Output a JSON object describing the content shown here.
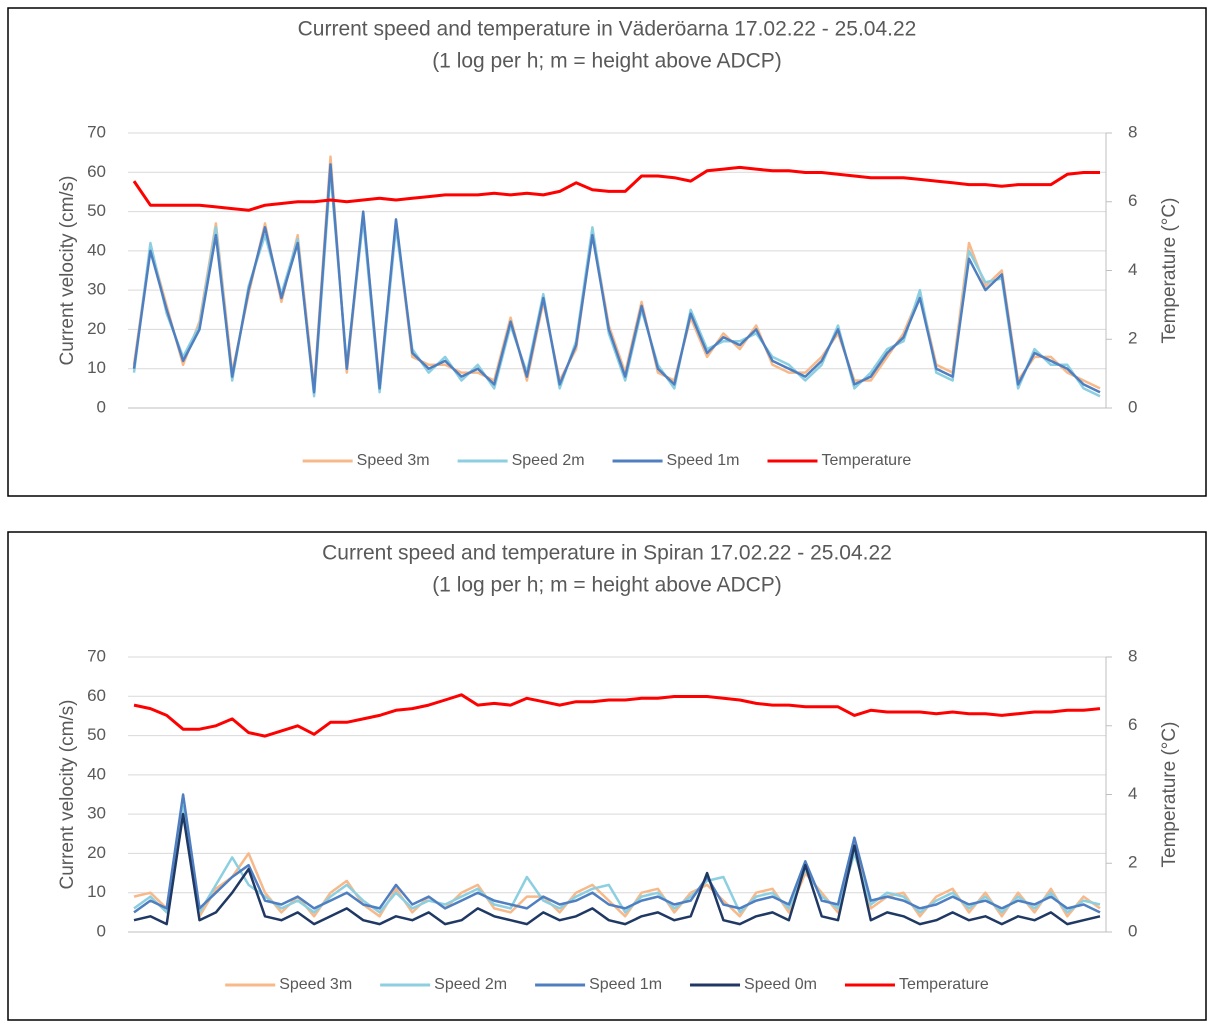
{
  "chart_data": [
    {
      "type": "line",
      "title": "Current speed and temperature in Väderöarna 17.02.22 - 25.04.22",
      "subtitle": "(1 log per h; m = height above ADCP)",
      "ylabel": "Current velocity (cm/s)",
      "y2label": "Temperature (°C)",
      "ylim": [
        0,
        70
      ],
      "yticks": [
        0,
        10,
        20,
        30,
        40,
        50,
        60,
        70
      ],
      "y2lim": [
        0,
        8
      ],
      "y2ticks": [
        0,
        2,
        4,
        6,
        8
      ],
      "grid": true,
      "legend": "bottom",
      "series": [
        {
          "name": "Speed 3m",
          "color": "#f8b98a",
          "values": [
            11,
            41,
            26,
            11,
            22,
            47,
            9,
            29,
            47,
            27,
            44,
            5,
            64,
            9,
            49,
            6,
            47,
            13,
            11,
            11,
            9,
            9,
            7,
            23,
            7,
            27,
            7,
            15,
            45,
            21,
            9,
            27,
            9,
            7,
            23,
            13,
            19,
            15,
            21,
            11,
            9,
            9,
            13,
            19,
            7,
            7,
            13,
            19,
            29,
            11,
            9,
            42,
            31,
            35,
            7,
            13,
            13,
            9,
            7,
            5
          ]
        },
        {
          "name": "Speed 2m",
          "color": "#8ccfe0",
          "values": [
            9,
            42,
            24,
            13,
            21,
            46,
            7,
            31,
            44,
            29,
            43,
            3,
            60,
            11,
            48,
            4,
            46,
            15,
            9,
            13,
            7,
            11,
            5,
            21,
            9,
            29,
            5,
            17,
            46,
            19,
            7,
            25,
            11,
            5,
            25,
            15,
            17,
            17,
            19,
            13,
            11,
            7,
            11,
            21,
            5,
            9,
            15,
            17,
            30,
            9,
            7,
            40,
            32,
            33,
            5,
            15,
            11,
            11,
            5,
            3
          ]
        },
        {
          "name": "Speed 1m",
          "color": "#4f7fc0",
          "values": [
            10,
            40,
            25,
            12,
            20,
            44,
            8,
            30,
            46,
            28,
            42,
            4,
            62,
            10,
            50,
            5,
            48,
            14,
            10,
            12,
            8,
            10,
            6,
            22,
            8,
            28,
            6,
            16,
            44,
            20,
            8,
            26,
            10,
            6,
            24,
            14,
            18,
            16,
            20,
            12,
            10,
            8,
            12,
            20,
            6,
            8,
            14,
            18,
            28,
            10,
            8,
            38,
            30,
            34,
            6,
            14,
            12,
            10,
            6,
            4
          ]
        },
        {
          "name": "Temperature",
          "color": "#ff0000",
          "axis": "y2",
          "values": [
            6.6,
            5.9,
            5.9,
            5.9,
            5.9,
            5.85,
            5.8,
            5.75,
            5.9,
            5.95,
            6.0,
            6.0,
            6.05,
            6.0,
            6.05,
            6.1,
            6.05,
            6.1,
            6.15,
            6.2,
            6.2,
            6.2,
            6.25,
            6.2,
            6.25,
            6.2,
            6.3,
            6.55,
            6.35,
            6.3,
            6.3,
            6.75,
            6.75,
            6.7,
            6.6,
            6.9,
            6.95,
            7.0,
            6.95,
            6.9,
            6.9,
            6.85,
            6.85,
            6.8,
            6.75,
            6.7,
            6.7,
            6.7,
            6.65,
            6.6,
            6.55,
            6.5,
            6.5,
            6.45,
            6.5,
            6.5,
            6.5,
            6.8,
            6.85,
            6.85
          ]
        }
      ]
    },
    {
      "type": "line",
      "title": "Current speed and temperature in Spiran 17.02.22 - 25.04.22",
      "subtitle": "(1 log per h; m = height above ADCP)",
      "ylabel": "Current velocity (cm/s)",
      "y2label": "Temperature (°C)",
      "ylim": [
        0,
        70
      ],
      "yticks": [
        0,
        10,
        20,
        30,
        40,
        50,
        60,
        70
      ],
      "y2lim": [
        0,
        8
      ],
      "y2ticks": [
        0,
        2,
        4,
        6,
        8
      ],
      "grid": true,
      "legend": "bottom",
      "series": [
        {
          "name": "Speed 3m",
          "color": "#f8b98a",
          "values": [
            9,
            10,
            6,
            31,
            4,
            11,
            14,
            20,
            10,
            5,
            9,
            4,
            10,
            13,
            7,
            4,
            11,
            5,
            9,
            6,
            10,
            12,
            6,
            5,
            9,
            9,
            5,
            10,
            12,
            8,
            4,
            10,
            11,
            5,
            10,
            12,
            8,
            4,
            10,
            11,
            5,
            15,
            10,
            5,
            23,
            6,
            9,
            10,
            4,
            9,
            11,
            5,
            10,
            4,
            10,
            5,
            11,
            4,
            9,
            6
          ]
        },
        {
          "name": "Speed 2m",
          "color": "#8ccfe0",
          "values": [
            6,
            9,
            5,
            32,
            5,
            12,
            19,
            12,
            9,
            6,
            8,
            5,
            9,
            12,
            8,
            5,
            10,
            6,
            8,
            7,
            9,
            11,
            7,
            6,
            14,
            8,
            6,
            9,
            11,
            12,
            5,
            9,
            10,
            6,
            9,
            13,
            14,
            5,
            9,
            10,
            6,
            16,
            9,
            6,
            20,
            7,
            10,
            9,
            5,
            8,
            10,
            6,
            9,
            5,
            9,
            6,
            10,
            5,
            8,
            7
          ]
        },
        {
          "name": "Speed 1m",
          "color": "#4f7fc0",
          "values": [
            5,
            8,
            6,
            35,
            6,
            10,
            14,
            17,
            8,
            7,
            9,
            6,
            8,
            10,
            7,
            6,
            12,
            7,
            9,
            6,
            8,
            10,
            8,
            7,
            6,
            9,
            7,
            8,
            10,
            7,
            6,
            8,
            9,
            7,
            8,
            14,
            7,
            6,
            8,
            9,
            7,
            18,
            8,
            7,
            24,
            8,
            9,
            8,
            6,
            7,
            9,
            7,
            8,
            6,
            8,
            7,
            9,
            6,
            7,
            5
          ]
        },
        {
          "name": "Speed 0m",
          "color": "#1f3864",
          "values": [
            3,
            4,
            2,
            30,
            3,
            5,
            10,
            16,
            4,
            3,
            5,
            2,
            4,
            6,
            3,
            2,
            4,
            3,
            5,
            2,
            3,
            6,
            4,
            3,
            2,
            5,
            3,
            4,
            6,
            3,
            2,
            4,
            5,
            3,
            4,
            15,
            3,
            2,
            4,
            5,
            3,
            17,
            4,
            3,
            22,
            3,
            5,
            4,
            2,
            3,
            5,
            3,
            4,
            2,
            4,
            3,
            5,
            2,
            3,
            4
          ]
        },
        {
          "name": "Temperature",
          "color": "#ff0000",
          "axis": "y2",
          "values": [
            6.6,
            6.5,
            6.3,
            5.9,
            5.9,
            6.0,
            6.2,
            5.8,
            5.7,
            5.85,
            6.0,
            5.75,
            6.1,
            6.1,
            6.2,
            6.3,
            6.45,
            6.5,
            6.6,
            6.75,
            6.9,
            6.6,
            6.65,
            6.6,
            6.8,
            6.7,
            6.6,
            6.7,
            6.7,
            6.75,
            6.75,
            6.8,
            6.8,
            6.85,
            6.85,
            6.85,
            6.8,
            6.75,
            6.65,
            6.6,
            6.6,
            6.55,
            6.55,
            6.55,
            6.3,
            6.45,
            6.4,
            6.4,
            6.4,
            6.35,
            6.4,
            6.35,
            6.35,
            6.3,
            6.35,
            6.4,
            6.4,
            6.45,
            6.45,
            6.5
          ]
        }
      ]
    }
  ]
}
